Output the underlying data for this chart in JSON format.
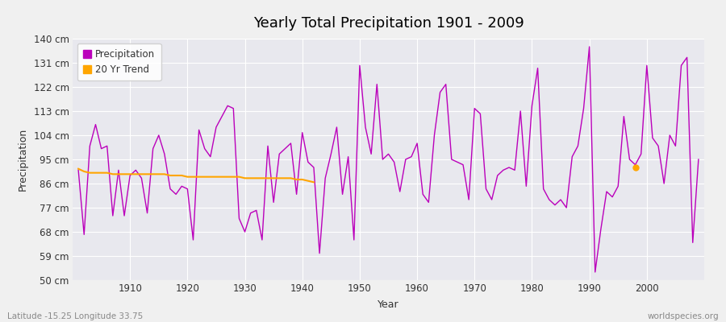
{
  "title": "Yearly Total Precipitation 1901 - 2009",
  "xlabel": "Year",
  "ylabel": "Precipitation",
  "lat_lon_label": "Latitude -15.25 Longitude 33.75",
  "source_label": "worldspecies.org",
  "bg_color": "#f0f0f0",
  "plot_bg_color": "#e8e8ee",
  "precip_color": "#bb00bb",
  "trend_color": "#FFA500",
  "ylim": [
    50,
    140
  ],
  "yticks": [
    50,
    59,
    68,
    77,
    86,
    95,
    104,
    113,
    122,
    131,
    140
  ],
  "xlim": [
    1900,
    2010
  ],
  "xticks": [
    1910,
    1920,
    1930,
    1940,
    1950,
    1960,
    1970,
    1980,
    1990,
    2000
  ],
  "years": [
    1901,
    1902,
    1903,
    1904,
    1905,
    1906,
    1907,
    1908,
    1909,
    1910,
    1911,
    1912,
    1913,
    1914,
    1915,
    1916,
    1917,
    1918,
    1919,
    1920,
    1921,
    1922,
    1923,
    1924,
    1925,
    1926,
    1927,
    1928,
    1929,
    1930,
    1931,
    1932,
    1933,
    1934,
    1935,
    1936,
    1937,
    1938,
    1939,
    1940,
    1941,
    1942,
    1943,
    1944,
    1945,
    1946,
    1947,
    1948,
    1949,
    1950,
    1951,
    1952,
    1953,
    1954,
    1955,
    1956,
    1957,
    1958,
    1959,
    1960,
    1961,
    1962,
    1963,
    1964,
    1965,
    1966,
    1967,
    1968,
    1969,
    1970,
    1971,
    1972,
    1973,
    1974,
    1975,
    1976,
    1977,
    1978,
    1979,
    1980,
    1981,
    1982,
    1983,
    1984,
    1985,
    1986,
    1987,
    1988,
    1989,
    1990,
    1991,
    1992,
    1993,
    1994,
    1995,
    1996,
    1997,
    1998,
    1999,
    2000,
    2001,
    2002,
    2003,
    2004,
    2005,
    2006,
    2007,
    2008,
    2009
  ],
  "precip": [
    91,
    67,
    100,
    108,
    99,
    100,
    74,
    91,
    74,
    89,
    91,
    88,
    75,
    99,
    104,
    97,
    84,
    82,
    85,
    84,
    65,
    106,
    99,
    96,
    107,
    111,
    115,
    114,
    73,
    68,
    75,
    76,
    65,
    100,
    79,
    97,
    99,
    101,
    82,
    105,
    94,
    92,
    60,
    88,
    97,
    107,
    82,
    96,
    65,
    130,
    107,
    97,
    123,
    95,
    97,
    94,
    83,
    95,
    96,
    101,
    82,
    79,
    104,
    120,
    123,
    95,
    94,
    93,
    80,
    114,
    112,
    84,
    80,
    89,
    91,
    92,
    91,
    113,
    85,
    115,
    129,
    84,
    80,
    78,
    80,
    77,
    96,
    100,
    114,
    137,
    53,
    69,
    83,
    81,
    85,
    111,
    95,
    93,
    97,
    130,
    103,
    100,
    86,
    104,
    100,
    130,
    133,
    64,
    95
  ],
  "trend_years": [
    1901,
    1902,
    1903,
    1904,
    1905,
    1906,
    1907,
    1908,
    1909,
    1910,
    1911,
    1912,
    1913,
    1914,
    1915,
    1916,
    1917,
    1918,
    1919,
    1920,
    1921,
    1922,
    1923,
    1924,
    1925,
    1926,
    1927,
    1928,
    1929,
    1930,
    1931,
    1932,
    1933,
    1934,
    1935,
    1936,
    1937,
    1938,
    1939,
    1940,
    1941,
    1942
  ],
  "trend_values": [
    91.5,
    90.5,
    90.0,
    90.0,
    90.0,
    90.0,
    89.5,
    89.5,
    89.5,
    89.5,
    89.5,
    89.5,
    89.5,
    89.5,
    89.5,
    89.5,
    89.0,
    89.0,
    89.0,
    88.5,
    88.5,
    88.5,
    88.5,
    88.5,
    88.5,
    88.5,
    88.5,
    88.5,
    88.5,
    88.0,
    88.0,
    88.0,
    88.0,
    88.0,
    88.0,
    88.0,
    88.0,
    88.0,
    87.5,
    87.5,
    87.0,
    86.5
  ],
  "trend_point_year": 1998,
  "trend_point_value": 92
}
